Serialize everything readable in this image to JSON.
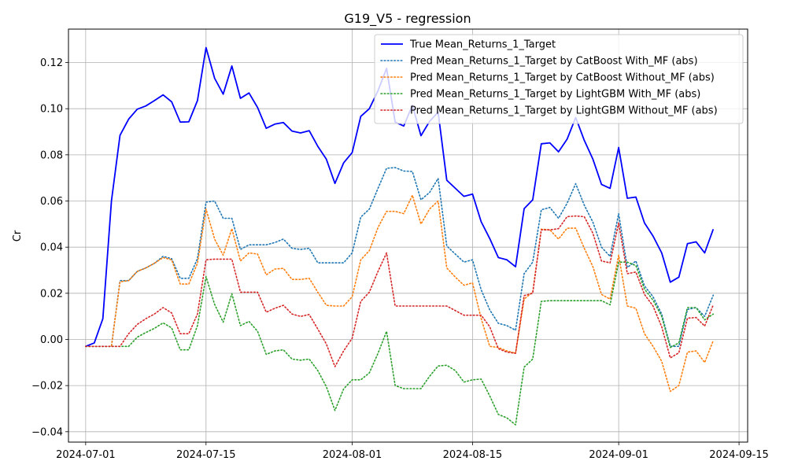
{
  "chart_data": {
    "type": "line",
    "title": "G19_V5 - regression",
    "xlabel": "",
    "ylabel": "Cr",
    "x_start": "2024-07-01",
    "x_step_days": 1,
    "xlim": [
      "2024-06-29",
      "2024-09-16"
    ],
    "ylim": [
      -0.0445,
      0.1345
    ],
    "xticks": [
      "2024-07-01",
      "2024-07-15",
      "2024-08-01",
      "2024-08-15",
      "2024-09-01",
      "2024-09-15"
    ],
    "yticks": [
      "−0.04",
      "−0.02",
      "0.00",
      "0.02",
      "0.04",
      "0.06",
      "0.08",
      "0.10",
      "0.12"
    ],
    "ytick_values": [
      -0.04,
      -0.02,
      0,
      0.02,
      0.04,
      0.06,
      0.08,
      0.1,
      0.12
    ],
    "grid": true,
    "legend_position": "top-right",
    "series": [
      {
        "name": "True Mean_Returns_1_Target",
        "color": "#0000ff",
        "style": "solid",
        "values": [
          -0.003,
          -0.0015,
          0.009,
          0.06,
          0.0885,
          0.0955,
          0.0998,
          0.1012,
          0.1035,
          0.106,
          0.103,
          0.0942,
          0.0943,
          0.1035,
          0.1265,
          0.1132,
          0.1063,
          0.1185,
          0.1045,
          0.1068,
          0.1005,
          0.0915,
          0.0933,
          0.094,
          0.0903,
          0.0895,
          0.0905,
          0.0837,
          0.0781,
          0.0676,
          0.0765,
          0.081,
          0.0967,
          0.1,
          0.1078,
          0.1175,
          0.0942,
          0.0925,
          0.1015,
          0.0883,
          0.0945,
          0.0985,
          0.069,
          0.0655,
          0.062,
          0.063,
          0.051,
          0.0437,
          0.0355,
          0.0345,
          0.0315,
          0.0567,
          0.0605,
          0.0848,
          0.0852,
          0.0813,
          0.0868,
          0.0962,
          0.0863,
          0.0781,
          0.0672,
          0.0655,
          0.0832,
          0.0612,
          0.0617,
          0.0505,
          0.0448,
          0.0375,
          0.0248,
          0.027,
          0.0415,
          0.0423,
          0.0375,
          0.0478
        ]
      },
      {
        "name": "Pred Mean_Returns_1_Target by CatBoost With_MF (abs)",
        "color": "#1f77b4",
        "style": "dotted",
        "values": [
          -0.003,
          -0.003,
          -0.003,
          -0.003,
          0.0255,
          0.0255,
          0.0295,
          0.031,
          0.033,
          0.036,
          0.035,
          0.0265,
          0.0265,
          0.035,
          0.0595,
          0.06,
          0.0525,
          0.0525,
          0.039,
          0.041,
          0.041,
          0.041,
          0.042,
          0.0435,
          0.0395,
          0.039,
          0.0395,
          0.0332,
          0.0332,
          0.0332,
          0.0332,
          0.0375,
          0.053,
          0.0565,
          0.0655,
          0.0742,
          0.0745,
          0.073,
          0.0728,
          0.0605,
          0.0637,
          0.0698,
          0.0405,
          0.037,
          0.0335,
          0.0345,
          0.0215,
          0.0128,
          0.007,
          0.006,
          0.004,
          0.0285,
          0.0335,
          0.0562,
          0.0572,
          0.0525,
          0.059,
          0.0675,
          0.0582,
          0.0508,
          0.04,
          0.036,
          0.0545,
          0.0312,
          0.034,
          0.0232,
          0.0185,
          0.011,
          -0.003,
          -0.003,
          0.013,
          0.0138,
          0.01,
          0.0192
        ]
      },
      {
        "name": "Pred Mean_Returns_1_Target by CatBoost Without_MF (abs)",
        "color": "#ff7f0e",
        "style": "dotted",
        "values": [
          -0.003,
          -0.003,
          -0.003,
          -0.003,
          0.025,
          0.0255,
          0.0295,
          0.031,
          0.033,
          0.0355,
          0.0345,
          0.024,
          0.024,
          0.033,
          0.0565,
          0.0435,
          0.0365,
          0.048,
          0.034,
          0.0375,
          0.037,
          0.028,
          0.0305,
          0.0308,
          0.026,
          0.026,
          0.0265,
          0.0205,
          0.0148,
          0.0145,
          0.0145,
          0.0185,
          0.0345,
          0.0385,
          0.0485,
          0.0555,
          0.0555,
          0.0545,
          0.0625,
          0.05,
          0.0565,
          0.06,
          0.031,
          0.027,
          0.0235,
          0.0245,
          0.009,
          -0.003,
          -0.0035,
          -0.005,
          -0.006,
          0.0175,
          0.0205,
          0.0478,
          0.0475,
          0.0435,
          0.0482,
          0.0482,
          0.0395,
          0.0315,
          0.0195,
          0.0175,
          0.0365,
          0.0145,
          0.0135,
          0.0025,
          -0.003,
          -0.0095,
          -0.0225,
          -0.02,
          -0.0055,
          -0.005,
          -0.01,
          -0.0005
        ]
      },
      {
        "name": "Pred Mean_Returns_1_Target by LightGBM With_MF (abs)",
        "color": "#2ca02c",
        "style": "dotted",
        "values": [
          -0.003,
          -0.003,
          -0.003,
          -0.003,
          -0.003,
          -0.003,
          0.001,
          0.003,
          0.0048,
          0.0072,
          0.005,
          -0.0045,
          -0.0045,
          0.006,
          0.0272,
          0.0152,
          0.0075,
          0.0198,
          0.006,
          0.0078,
          0.0035,
          -0.0065,
          -0.005,
          -0.0045,
          -0.0085,
          -0.009,
          -0.0085,
          -0.0135,
          -0.0205,
          -0.0308,
          -0.0215,
          -0.0175,
          -0.0175,
          -0.0145,
          -0.006,
          0.0035,
          -0.02,
          -0.0213,
          -0.0213,
          -0.0213,
          -0.016,
          -0.0115,
          -0.0112,
          -0.0135,
          -0.0185,
          -0.0175,
          -0.0172,
          -0.0245,
          -0.0325,
          -0.034,
          -0.037,
          -0.012,
          -0.0085,
          0.0165,
          0.0168,
          0.0168,
          0.0168,
          0.0168,
          0.0168,
          0.0168,
          0.0168,
          0.015,
          0.0335,
          0.0335,
          0.032,
          0.0218,
          0.017,
          0.01,
          -0.0035,
          -0.0015,
          0.0138,
          0.0138,
          0.0085,
          0.011
        ]
      },
      {
        "name": "Pred Mean_Returns_1_Target by LightGBM Without_MF (abs)",
        "color": "#d62728",
        "style": "dotted",
        "values": [
          -0.003,
          -0.003,
          -0.003,
          -0.003,
          -0.003,
          0.0025,
          0.0065,
          0.009,
          0.011,
          0.0138,
          0.0115,
          0.0025,
          0.0025,
          0.011,
          0.0345,
          0.0348,
          0.0348,
          0.0348,
          0.0205,
          0.0205,
          0.0205,
          0.0118,
          0.0135,
          0.0148,
          0.011,
          0.01,
          0.0108,
          0.0045,
          -0.002,
          -0.0118,
          -0.005,
          0.0005,
          0.0165,
          0.0205,
          0.0295,
          0.0375,
          0.0145,
          0.0145,
          0.0145,
          0.0145,
          0.0145,
          0.0145,
          0.0145,
          0.0125,
          0.0105,
          0.0105,
          0.0105,
          0.0055,
          -0.004,
          -0.0055,
          -0.006,
          0.019,
          0.02,
          0.0475,
          0.0475,
          0.048,
          0.0532,
          0.0535,
          0.0532,
          0.046,
          0.034,
          0.0332,
          0.0505,
          0.0285,
          0.0292,
          0.0195,
          0.0145,
          0.0055,
          -0.008,
          -0.0058,
          0.0092,
          0.0095,
          0.0058,
          0.015
        ]
      }
    ]
  }
}
